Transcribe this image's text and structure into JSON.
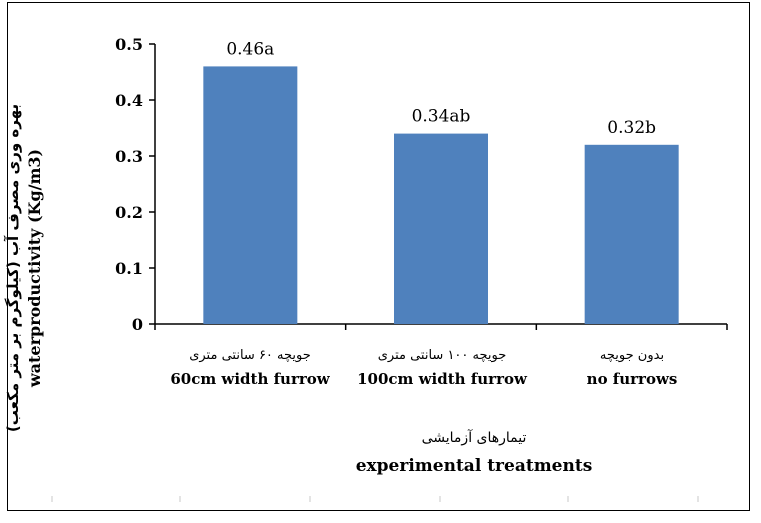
{
  "chart_data": {
    "type": "bar",
    "categories": [
      {
        "fa": "جویچه ۶۰ سانتی متری",
        "en": "60cm width furrow"
      },
      {
        "fa": "جویچه ۱۰۰ سانتی متری",
        "en": "100cm width furrow"
      },
      {
        "fa": "بدون جویچه",
        "en": "no furrows"
      }
    ],
    "values": [
      0.46,
      0.34,
      0.32
    ],
    "data_labels": [
      "0.46a",
      "0.34ab",
      "0.32b"
    ],
    "ylabel": {
      "fa": "بهره وری مصرف آب (کیلوگرم بر متر مکعب)",
      "en": "waterproductivity (Kg/m3)"
    },
    "xlabel": {
      "fa": "تیمارهای آزمایشی",
      "en": "experimental treatments"
    },
    "yticks": [
      "0",
      "0.1",
      "0.2",
      "0.3",
      "0.4",
      "0.5"
    ],
    "ylim": [
      0,
      0.5
    ],
    "grid": false,
    "bar_color": "#4f81bd"
  }
}
